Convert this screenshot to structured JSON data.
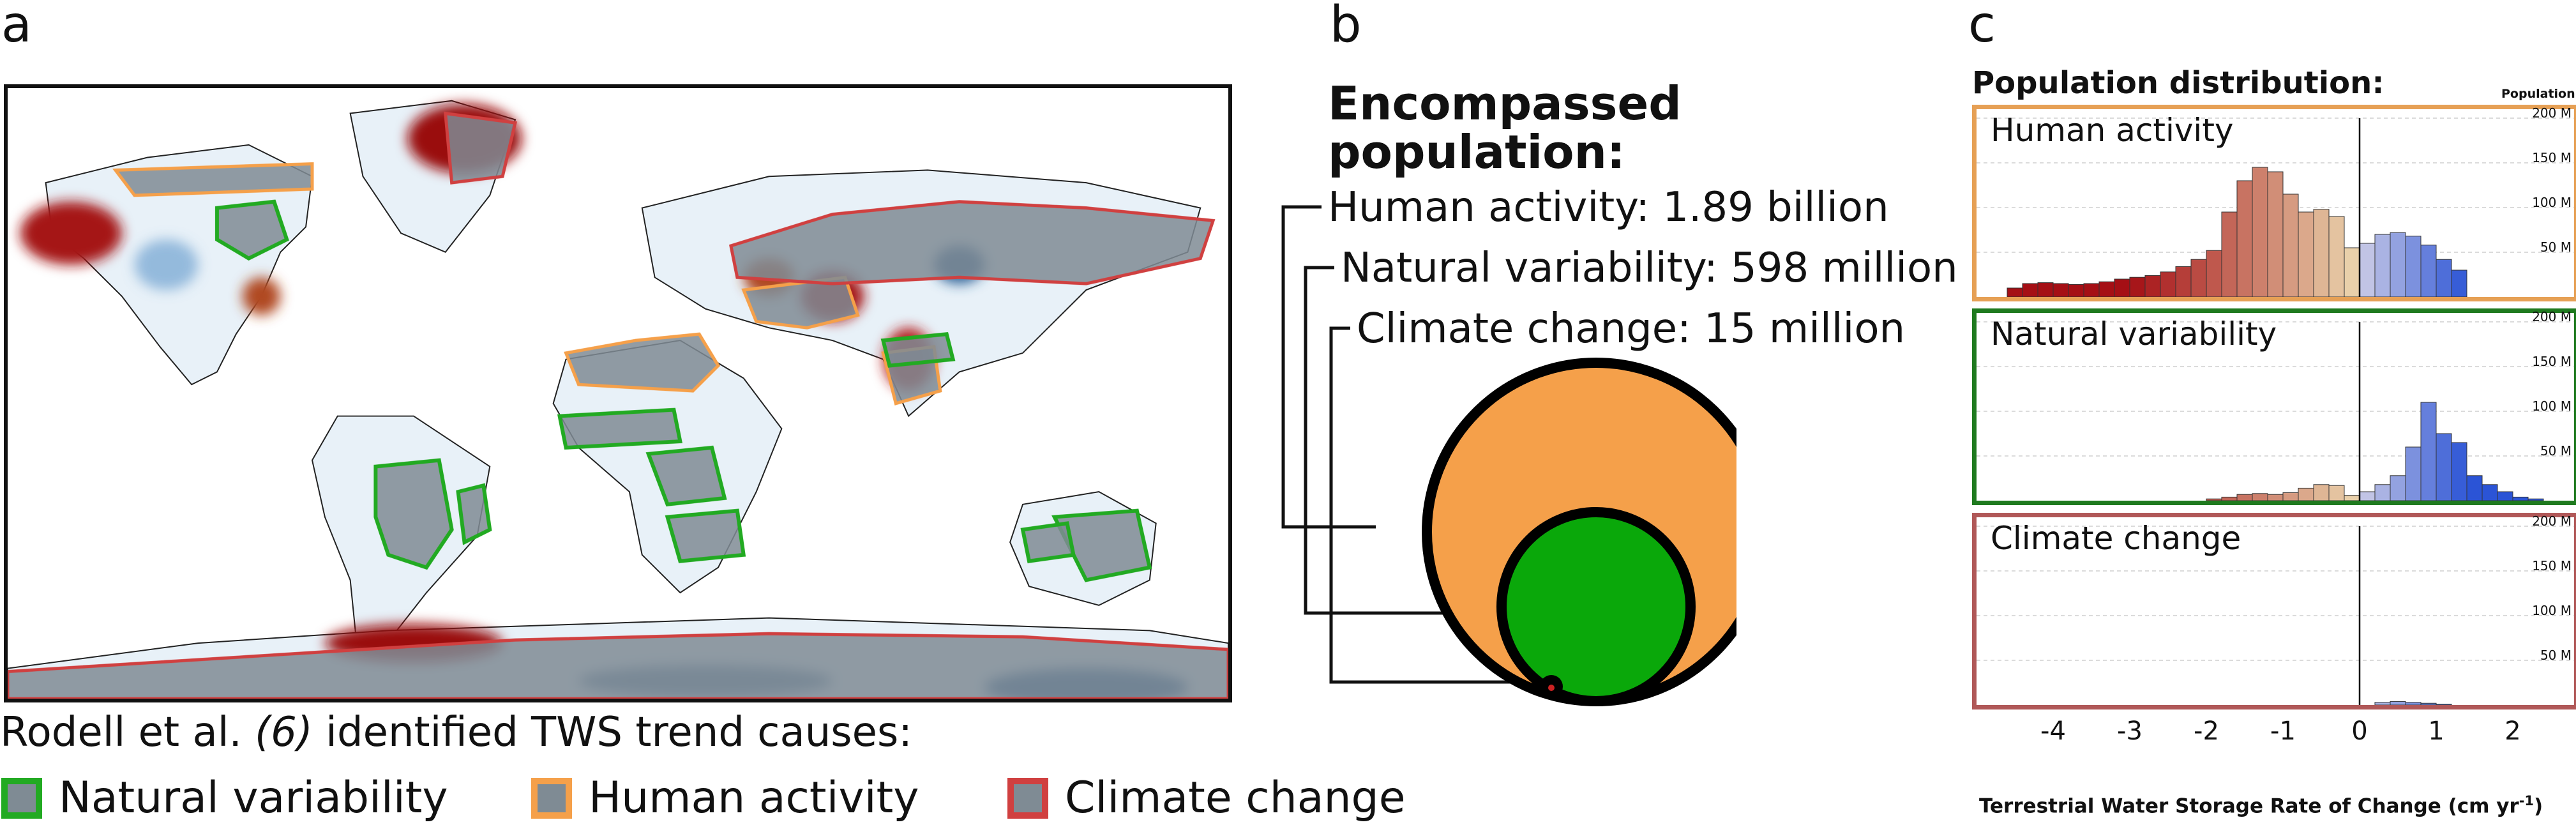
{
  "panels": {
    "a": "a",
    "b": "b",
    "c": "c"
  },
  "legend": {
    "caption_pre": "Rodell et al. ",
    "caption_ref": "(6)",
    "caption_post": " identified TWS trend causes:",
    "items": [
      {
        "label": "Natural variability",
        "border": "#22aa22"
      },
      {
        "label": "Human activity",
        "border": "#f5a04a"
      },
      {
        "label": "Climate change",
        "border": "#d04040"
      }
    ]
  },
  "panel_b": {
    "title_line1": "Encompassed",
    "title_line2": "population:",
    "lines": [
      "Human activity: 1.89 billion",
      "Natural variability: 598 million",
      "Climate change: 15 million"
    ]
  },
  "colors": {
    "human": "#f5a04a",
    "natural": "#0aa80a",
    "climate": "#cc2222",
    "drying": "#a50f15",
    "wetting": "#2b54d6"
  },
  "chart_data": {
    "type": "bar",
    "title": "Population distribution:",
    "xlabel": "Terrestrial Water Storage Rate of Change (cm yr",
    "xlabel_sup": "-1",
    "xlabel_end": ")",
    "ylabel": "Population",
    "ylim": [
      0,
      200
    ],
    "yticks": [
      "50 M",
      "100 M",
      "150 M",
      "200 M"
    ],
    "xlim": [
      -5.0,
      2.8
    ],
    "xticks": [
      "-4",
      "-3",
      "-2",
      "-1",
      "0",
      "1",
      "2"
    ],
    "bin_width": 0.2,
    "bins_start": [
      -4.6,
      -4.4,
      -4.2,
      -4.0,
      -3.8,
      -3.6,
      -3.4,
      -3.2,
      -3.0,
      -2.8,
      -2.6,
      -2.4,
      -2.2,
      -2.0,
      -1.8,
      -1.6,
      -1.4,
      -1.2,
      -1.0,
      -0.8,
      -0.6,
      -0.4,
      -0.2,
      0.0,
      0.2,
      0.4,
      0.6,
      0.8,
      1.0,
      1.2,
      1.4,
      1.6,
      1.8,
      2.0,
      2.2
    ],
    "series": [
      {
        "name": "Human activity",
        "values": [
          10,
          15,
          16,
          15,
          14,
          15,
          17,
          20,
          22,
          24,
          28,
          34,
          42,
          52,
          95,
          130,
          145,
          140,
          115,
          95,
          98,
          90,
          55,
          60,
          70,
          72,
          68,
          58,
          42,
          30,
          0,
          0,
          0,
          0,
          0
        ]
      },
      {
        "name": "Natural variability",
        "values": [
          0,
          0,
          0,
          0,
          0,
          0,
          0,
          0,
          0,
          0,
          0,
          0,
          0,
          2,
          4,
          7,
          8,
          7,
          9,
          14,
          18,
          17,
          6,
          10,
          18,
          28,
          60,
          110,
          75,
          65,
          28,
          18,
          10,
          4,
          2
        ]
      },
      {
        "name": "Climate change",
        "values": [
          0,
          0,
          0,
          0,
          0,
          0,
          0,
          0,
          0,
          0,
          0,
          0,
          0,
          0,
          0,
          0,
          0,
          0,
          0,
          0,
          0,
          0,
          0,
          0,
          3,
          4,
          3,
          2,
          1,
          0,
          0,
          0,
          0,
          0,
          0
        ]
      }
    ]
  }
}
